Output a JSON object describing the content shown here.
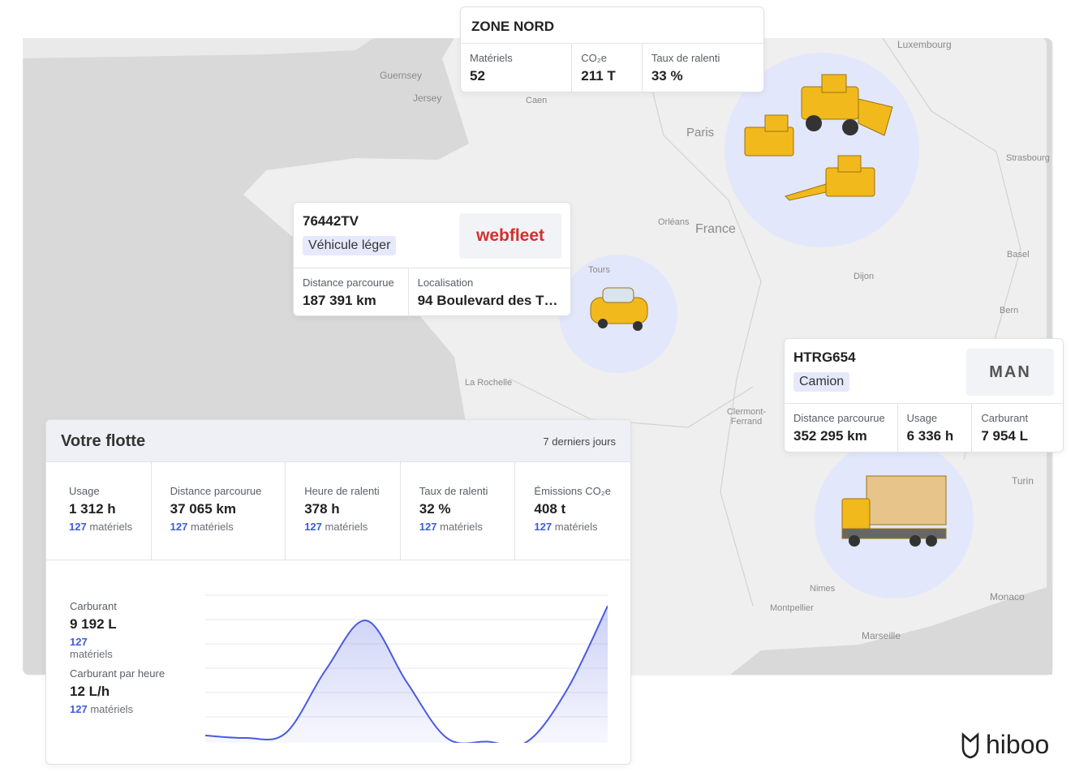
{
  "map": {
    "labels": [
      "Guernsey",
      "Jersey",
      "Caen",
      "Paris",
      "Orléans",
      "France",
      "Tours",
      "Dijon",
      "La Rochelle",
      "Clermont-Ferrand",
      "Luxembourg",
      "Strasbourg",
      "Basel",
      "Bern",
      "Turin",
      "Nimes",
      "Montpellier",
      "Marseille",
      "Monaco"
    ]
  },
  "zone": {
    "title": "ZONE NORD",
    "stats": [
      {
        "label": "Matériels",
        "value": "52"
      },
      {
        "label": "CO₂e",
        "value": "211 T"
      },
      {
        "label": "Taux de ralenti",
        "value": "33 %"
      }
    ]
  },
  "vehicle_light": {
    "id": "76442TV",
    "tag": "Véhicule léger",
    "logo": "webfleet",
    "stats": [
      {
        "label": "Distance parcourue",
        "value": "187 391 km"
      },
      {
        "label": "Localisation",
        "value": "94 Boulevard des T…"
      }
    ]
  },
  "vehicle_truck": {
    "id": "HTRG654",
    "tag": "Camion",
    "logo": "MAN",
    "stats": [
      {
        "label": "Distance parcourue",
        "value": "352 295 km"
      },
      {
        "label": "Usage",
        "value": "6 336 h"
      },
      {
        "label": "Carburant",
        "value": "7 954 L"
      }
    ]
  },
  "fleet": {
    "title": "Votre flotte",
    "period": "7 derniers jours",
    "stats": [
      {
        "label": "Usage",
        "value": "1 312 h",
        "count": "127",
        "unit": "matériels"
      },
      {
        "label": "Distance parcourue",
        "value": "37 065 km",
        "count": "127",
        "unit": "matériels"
      },
      {
        "label": "Heure de ralenti",
        "value": "378 h",
        "count": "127",
        "unit": "matériels"
      },
      {
        "label": "Taux de ralenti",
        "value": "32 %",
        "count": "127",
        "unit": "matériels"
      },
      {
        "label": "Émissions CO₂e",
        "value": "408 t",
        "count": "127",
        "unit": "matériels"
      }
    ],
    "fuel": [
      {
        "label": "Carburant",
        "value": "9 192 L",
        "count": "127",
        "unit": "matériels"
      },
      {
        "label": "Carburant par heure",
        "value": "12 L/h",
        "count": "127",
        "unit": "matériels"
      }
    ],
    "chart": {
      "type": "area",
      "color": "#4a5be0",
      "values": [
        0.3,
        0.2,
        0.4,
        3.0,
        5.0,
        2.5,
        0.2,
        0.05,
        0.05,
        2.2,
        5.6
      ],
      "ylim": [
        0,
        6.8
      ]
    }
  },
  "brand": "hiboo"
}
